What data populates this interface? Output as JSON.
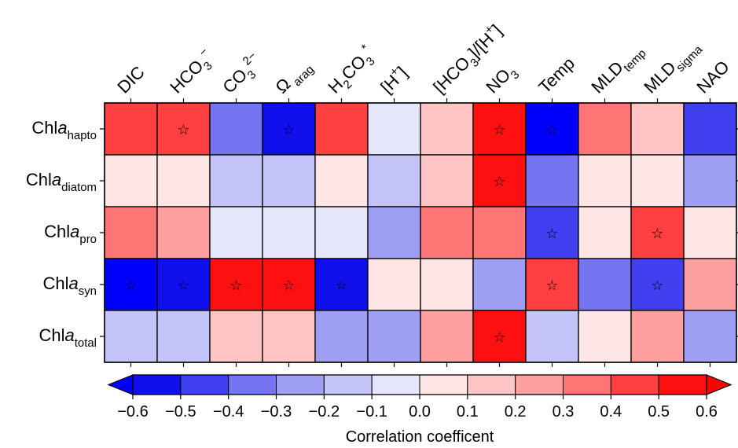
{
  "chart_data": {
    "type": "heatmap",
    "columns": [
      {
        "key": "dic",
        "label": [
          {
            "t": "DIC"
          }
        ]
      },
      {
        "key": "hco3",
        "label": [
          {
            "t": "HCO"
          },
          {
            "t": "3",
            "sub": true
          },
          {
            "t": "−",
            "sup": true
          }
        ]
      },
      {
        "key": "co3",
        "label": [
          {
            "t": "CO"
          },
          {
            "t": "3",
            "sub": true
          },
          {
            "t": "2−",
            "sup": true
          }
        ]
      },
      {
        "key": "omega",
        "label": [
          {
            "t": "Ω"
          },
          {
            "t": " arag",
            "sub": true
          }
        ]
      },
      {
        "key": "h2co3",
        "label": [
          {
            "t": "H"
          },
          {
            "t": "2",
            "sub": true
          },
          {
            "t": "CO"
          },
          {
            "t": "3",
            "sub": true
          },
          {
            "t": "*",
            "sup": true
          }
        ]
      },
      {
        "key": "h",
        "label": [
          {
            "t": "[H"
          },
          {
            "t": "+",
            "sup": true
          },
          {
            "t": "]"
          }
        ]
      },
      {
        "key": "hco3_h",
        "label": [
          {
            "t": "[HCO"
          },
          {
            "t": "3",
            "sub": true
          },
          {
            "t": "]/[H"
          },
          {
            "t": "+",
            "sup": true
          },
          {
            "t": "]"
          }
        ]
      },
      {
        "key": "no3",
        "label": [
          {
            "t": "NO"
          },
          {
            "t": "3",
            "sub": true
          }
        ]
      },
      {
        "key": "temp",
        "label": [
          {
            "t": "Temp"
          }
        ]
      },
      {
        "key": "mld_temp",
        "label": [
          {
            "t": "MLD"
          },
          {
            "t": "temp",
            "sub": true
          }
        ]
      },
      {
        "key": "mld_sigma",
        "label": [
          {
            "t": "MLD"
          },
          {
            "t": "sigma",
            "sub": true
          }
        ]
      },
      {
        "key": "nao",
        "label": [
          {
            "t": "NAO"
          }
        ]
      }
    ],
    "rows": [
      {
        "key": "hapto",
        "label": [
          {
            "t": "Chl"
          },
          {
            "t": "a",
            "it": true
          },
          {
            "t": "hapto",
            "sub": true
          }
        ]
      },
      {
        "key": "diatom",
        "label": [
          {
            "t": "Chl"
          },
          {
            "t": "a",
            "it": true
          },
          {
            "t": "diatom",
            "sub": true
          }
        ]
      },
      {
        "key": "pro",
        "label": [
          {
            "t": "Chl"
          },
          {
            "t": "a",
            "it": true
          },
          {
            "t": "pro",
            "sub": true
          }
        ]
      },
      {
        "key": "syn",
        "label": [
          {
            "t": "Chl"
          },
          {
            "t": "a",
            "it": true
          },
          {
            "t": "syn",
            "sub": true
          }
        ]
      },
      {
        "key": "total",
        "label": [
          {
            "t": "Chl"
          },
          {
            "t": "a",
            "it": true
          },
          {
            "t": "total",
            "sub": true
          }
        ]
      }
    ],
    "values": [
      [
        0.45,
        0.47,
        -0.35,
        -0.55,
        0.4,
        -0.05,
        0.15,
        0.55,
        -0.65,
        0.35,
        0.15,
        -0.45
      ],
      [
        0.05,
        0.05,
        -0.15,
        -0.15,
        0.05,
        -0.15,
        0.15,
        0.55,
        -0.35,
        0.05,
        0.05,
        -0.25
      ],
      [
        0.35,
        0.25,
        -0.05,
        -0.05,
        -0.05,
        -0.25,
        0.35,
        0.35,
        -0.45,
        0.05,
        0.45,
        0.05
      ],
      [
        -0.65,
        -0.55,
        0.55,
        0.55,
        -0.55,
        0.05,
        0.05,
        -0.25,
        0.45,
        -0.35,
        -0.45,
        0.25
      ],
      [
        -0.15,
        -0.15,
        0.15,
        0.15,
        -0.25,
        -0.25,
        0.25,
        0.55,
        -0.15,
        0.05,
        0.25,
        -0.25
      ]
    ],
    "significant": [
      [
        false,
        true,
        false,
        true,
        false,
        false,
        false,
        true,
        true,
        false,
        false,
        false
      ],
      [
        false,
        false,
        false,
        false,
        false,
        false,
        false,
        true,
        false,
        false,
        false,
        false
      ],
      [
        false,
        false,
        false,
        false,
        false,
        false,
        false,
        false,
        true,
        false,
        true,
        false
      ],
      [
        true,
        true,
        true,
        true,
        true,
        false,
        false,
        false,
        true,
        false,
        true,
        false
      ],
      [
        false,
        false,
        false,
        false,
        false,
        false,
        false,
        true,
        false,
        false,
        false,
        false
      ]
    ],
    "significance_marker": "☆",
    "colorbar": {
      "label": "Correlation coefficent",
      "boundaries": [
        -0.6,
        -0.5,
        -0.4,
        -0.3,
        -0.2,
        -0.1,
        0.0,
        0.1,
        0.2,
        0.3,
        0.4,
        0.5,
        0.6
      ],
      "tick_labels": [
        "−0.6",
        "−0.5",
        "−0.4",
        "−0.3",
        "−0.2",
        "−0.1",
        "0.0",
        "0.1",
        "0.2",
        "0.3",
        "0.4",
        "0.5",
        "0.6"
      ],
      "colors": [
        "#0000ff",
        "#1010ee",
        "#4040f0",
        "#7575f4",
        "#9f9ff6",
        "#c4c4f8",
        "#e6e6fb",
        "#ffe6e6",
        "#ffc4c4",
        "#ff9f9f",
        "#ff7575",
        "#ff4040",
        "#ff1010",
        "#ff0000"
      ],
      "extend": "both"
    }
  }
}
